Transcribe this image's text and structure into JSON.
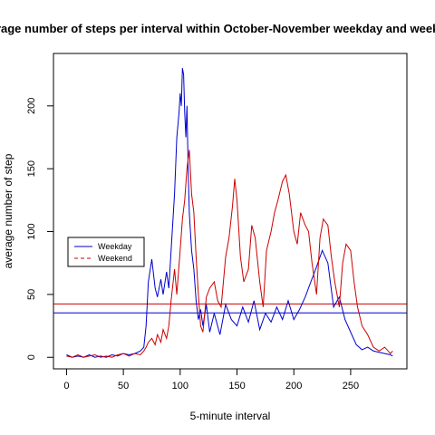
{
  "chart_data": {
    "type": "line",
    "title": "Average number of steps per interval within October-November weekday and weekend",
    "xlabel": "5-minute interval",
    "ylabel": "average number of step",
    "xlim": [
      -11.5,
      299.5
    ],
    "ylim": [
      -9.2,
      241.7
    ],
    "xticks": [
      0,
      50,
      100,
      150,
      200,
      250
    ],
    "yticks": [
      0,
      50,
      100,
      150,
      200
    ],
    "xtick_labels": [
      "0",
      "50",
      "100",
      "150",
      "200",
      "250"
    ],
    "ytick_labels": [
      "0",
      "50",
      "100",
      "150",
      "200"
    ],
    "grid": false,
    "legend": {
      "position": "middle-left",
      "entries": [
        "Weekday",
        "Weekend"
      ]
    },
    "series": [
      {
        "name": "Weekday",
        "color": "#0000cc",
        "style": "solid",
        "x": [
          0,
          5,
          10,
          15,
          20,
          25,
          30,
          35,
          40,
          45,
          50,
          55,
          60,
          65,
          68,
          70,
          72,
          75,
          78,
          80,
          83,
          85,
          88,
          90,
          92,
          95,
          97,
          99,
          100,
          101,
          102,
          103,
          104,
          105,
          106,
          107,
          108,
          110,
          112,
          114,
          116,
          118,
          120,
          123,
          126,
          130,
          135,
          140,
          145,
          150,
          155,
          160,
          165,
          170,
          175,
          180,
          185,
          190,
          195,
          200,
          205,
          210,
          215,
          220,
          225,
          230,
          235,
          240,
          245,
          250,
          255,
          260,
          265,
          270,
          275,
          280,
          285,
          287
        ],
        "y": [
          2,
          0,
          1,
          0,
          2,
          0,
          1,
          0,
          2,
          1,
          3,
          2,
          3,
          5,
          8,
          25,
          60,
          78,
          55,
          48,
          62,
          50,
          68,
          55,
          85,
          130,
          175,
          195,
          210,
          200,
          230,
          225,
          195,
          175,
          200,
          150,
          115,
          85,
          70,
          45,
          30,
          38,
          25,
          42,
          20,
          35,
          18,
          42,
          30,
          25,
          40,
          28,
          45,
          22,
          35,
          28,
          40,
          30,
          45,
          30,
          38,
          48,
          60,
          72,
          85,
          75,
          40,
          48,
          30,
          20,
          10,
          6,
          8,
          5,
          4,
          3,
          2,
          1
        ]
      },
      {
        "name": "Weekend",
        "color": "#cc0000",
        "style": "solid",
        "x": [
          0,
          5,
          10,
          15,
          20,
          25,
          30,
          35,
          40,
          45,
          50,
          55,
          60,
          65,
          68,
          70,
          72,
          75,
          78,
          80,
          83,
          85,
          88,
          90,
          92,
          95,
          97,
          100,
          102,
          104,
          106,
          108,
          110,
          112,
          114,
          116,
          118,
          120,
          123,
          126,
          130,
          133,
          136,
          140,
          143,
          146,
          148,
          150,
          153,
          156,
          160,
          163,
          166,
          170,
          173,
          176,
          180,
          183,
          186,
          190,
          193,
          196,
          198,
          200,
          203,
          206,
          210,
          213,
          216,
          220,
          223,
          226,
          230,
          233,
          236,
          240,
          243,
          246,
          250,
          253,
          256,
          260,
          265,
          270,
          275,
          280,
          285,
          287
        ],
        "y": [
          1,
          0,
          2,
          0,
          1,
          2,
          0,
          1,
          0,
          2,
          3,
          1,
          3,
          2,
          5,
          8,
          12,
          15,
          10,
          18,
          12,
          22,
          15,
          25,
          45,
          70,
          50,
          85,
          110,
          125,
          150,
          165,
          130,
          115,
          80,
          50,
          25,
          20,
          48,
          55,
          60,
          45,
          40,
          80,
          95,
          120,
          142,
          125,
          80,
          60,
          70,
          105,
          95,
          60,
          40,
          85,
          100,
          115,
          125,
          140,
          145,
          130,
          115,
          100,
          90,
          115,
          105,
          100,
          75,
          50,
          95,
          110,
          105,
          80,
          60,
          40,
          75,
          90,
          85,
          60,
          40,
          25,
          18,
          8,
          5,
          8,
          3,
          5
        ]
      }
    ],
    "hlines": [
      {
        "y": 42.4,
        "color": "#cc0000"
      },
      {
        "y": 35.3,
        "color": "#0000cc"
      }
    ]
  }
}
